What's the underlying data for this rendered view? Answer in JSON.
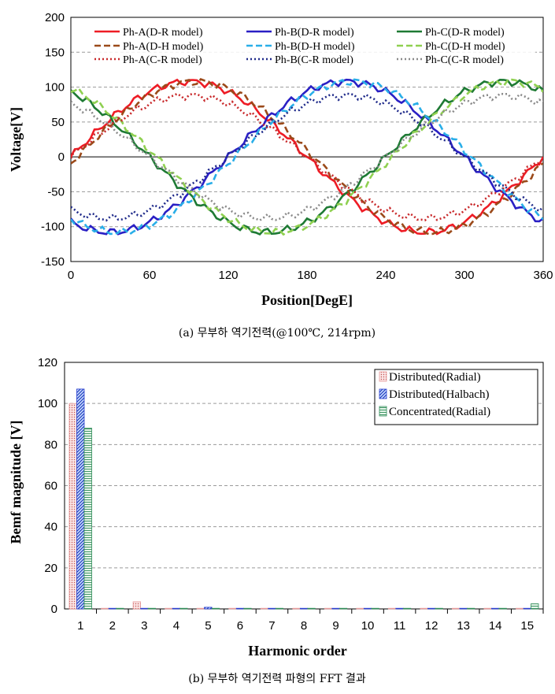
{
  "chart_data": [
    {
      "type": "line",
      "ylabel": "Voltage[V]",
      "xlabel": "Position[DegE]",
      "xlim": [
        0,
        360
      ],
      "ylim": [
        -150,
        200
      ],
      "xticks": [
        0,
        60,
        120,
        180,
        240,
        300,
        360
      ],
      "yticks": [
        -150,
        -100,
        -50,
        0,
        50,
        100,
        150,
        200
      ],
      "grid": "horizontal dashed",
      "legend_position": "top",
      "series": [
        {
          "name": "Ph-A(D-R model)",
          "color": "#ee1c25",
          "style": "solid",
          "amplitude": 108,
          "shift_deg": 0
        },
        {
          "name": "Ph-B(D-R model)",
          "color": "#2a1fc4",
          "style": "solid",
          "amplitude": 108,
          "shift_deg": -120
        },
        {
          "name": "Ph-C(D-R model)",
          "color": "#1e7a34",
          "style": "solid",
          "amplitude": 108,
          "shift_deg": 120
        },
        {
          "name": "Ph-A(D-H model)",
          "color": "#9b4a1a",
          "style": "dashed",
          "amplitude": 108,
          "shift_deg": -5
        },
        {
          "name": "Ph-B(D-H model)",
          "color": "#29aee8",
          "style": "dashed",
          "amplitude": 108,
          "shift_deg": -125
        },
        {
          "name": "Ph-C(D-H model)",
          "color": "#8fd050",
          "style": "dashed",
          "amplitude": 108,
          "shift_deg": 115
        },
        {
          "name": "Ph-A(C-R model)",
          "color": "#c8282a",
          "style": "dotted",
          "amplitude": 88,
          "shift_deg": 0
        },
        {
          "name": "Ph-B(C-R model)",
          "color": "#1f2a8a",
          "style": "dotted",
          "amplitude": 88,
          "shift_deg": -120
        },
        {
          "name": "Ph-C(C-R model)",
          "color": "#8a8a8a",
          "style": "dotted",
          "amplitude": 88,
          "shift_deg": 120
        }
      ]
    },
    {
      "type": "bar",
      "ylabel": "Bemf magnitude [V]",
      "xlabel": "Harmonic order",
      "categories": [
        "1",
        "2",
        "3",
        "4",
        "5",
        "6",
        "7",
        "8",
        "9",
        "10",
        "11",
        "12",
        "13",
        "14",
        "15"
      ],
      "ylim": [
        0,
        120
      ],
      "yticks": [
        0,
        20,
        40,
        60,
        80,
        100,
        120
      ],
      "grid": "horizontal dashed",
      "legend_position": "top-right",
      "series": [
        {
          "name": "Distributed(Radial)",
          "color": "#e79a9a",
          "pattern": "dots",
          "values": [
            100,
            0.2,
            3.5,
            0.2,
            0.3,
            0.2,
            0.2,
            0.2,
            0.2,
            0.2,
            0.2,
            0.2,
            0.2,
            0.2,
            0.3
          ]
        },
        {
          "name": "Distributed(Halbach)",
          "color": "#2a3fd0",
          "pattern": "diagonal",
          "values": [
            107,
            0.2,
            0.3,
            0.2,
            0.8,
            0.2,
            0.2,
            0.2,
            0.2,
            0.2,
            0.2,
            0.2,
            0.2,
            0.2,
            0.2
          ]
        },
        {
          "name": "Concentrated(Radial)",
          "color": "#2e8b57",
          "pattern": "horizontal",
          "values": [
            88,
            0.2,
            0.3,
            0.2,
            0.3,
            0.2,
            0.2,
            0.2,
            0.2,
            0.2,
            0.2,
            0.2,
            0.2,
            0.2,
            2.5
          ]
        }
      ]
    }
  ],
  "captions": {
    "a": "(a) 무부하 역기전력(@100℃, 214rpm)",
    "b": "(b) 무부하 역기전력 파형의 FFT 결과"
  }
}
